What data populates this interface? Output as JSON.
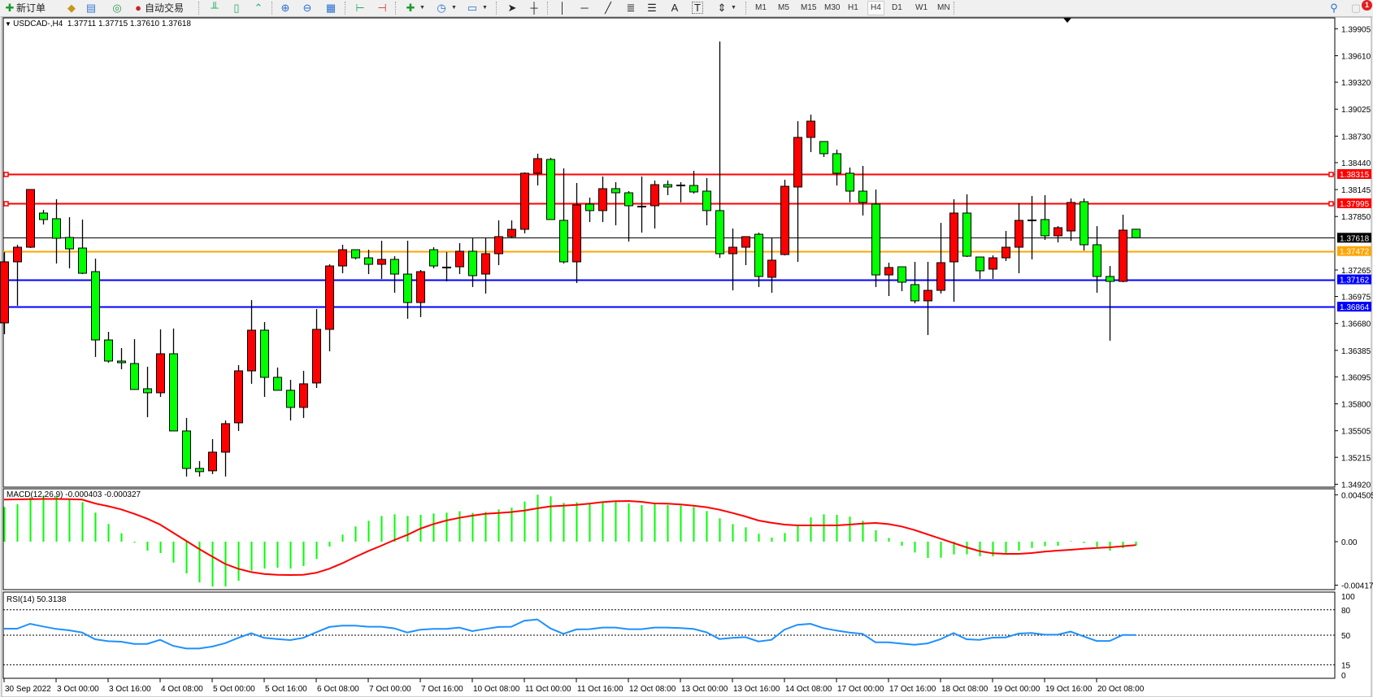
{
  "toolbar": {
    "new_order_label": "新订单",
    "auto_trading_label": "自动交易",
    "timeframes": [
      "M1",
      "M5",
      "M15",
      "M30",
      "H1",
      "H4",
      "D1",
      "W1",
      "MN"
    ],
    "active_timeframe": "H4",
    "notification_count": "1",
    "icons": [
      "new-order-icon",
      "gold-icon",
      "market-watch-icon",
      "signals-icon",
      "auto-trading-icon",
      "bar-chart-icon",
      "candlestick-icon",
      "line-chart-icon",
      "zoom-in-icon",
      "zoom-out-icon",
      "tile-windows-icon",
      "chart-shift-icon",
      "autoscroll-icon",
      "add-indicator-icon",
      "periods-icon",
      "templates-icon",
      "cursor-icon",
      "crosshair-icon",
      "vertical-line-icon",
      "horizontal-line-icon",
      "trendline-icon",
      "fibonacci-icon",
      "fibo-fan-icon",
      "text-icon",
      "text-label-icon",
      "arrows-icon",
      "search-icon",
      "notifications-icon"
    ]
  },
  "chart": {
    "symbol_header": "USDCAD-,H4  1.37711 1.37715 1.37610 1.37618",
    "colors": {
      "bull": "#ff0000",
      "bear": "#00ff00",
      "background": "#ffffff",
      "signal": "#ff0000",
      "histogram": "#00ff00",
      "rsi": "#1e90ff"
    },
    "price_axis_labels": [
      "1.39905",
      "1.39610",
      "1.39320",
      "1.39025",
      "1.38730",
      "1.38440",
      "1.38145",
      "1.37850",
      "1.37265",
      "1.36975",
      "1.36680",
      "1.36385",
      "1.36095",
      "1.35800",
      "1.35505",
      "1.35215",
      "1.34920"
    ],
    "levels": [
      {
        "price": "1.38315",
        "color": "#ff0000",
        "text_color": "#ffffff"
      },
      {
        "price": "1.37995",
        "color": "#ff0000",
        "text_color": "#ffffff"
      },
      {
        "price": "1.37618",
        "color": "#000000",
        "text_color": "#ffffff"
      },
      {
        "price": "1.37472",
        "color": "#ffa500",
        "text_color": "#ffffff"
      },
      {
        "price": "1.37162",
        "color": "#0000ff",
        "text_color": "#ffffff"
      },
      {
        "price": "1.36864",
        "color": "#0000ff",
        "text_color": "#ffffff"
      }
    ],
    "time_labels": [
      "30 Sep 2022",
      "3 Oct 00:00",
      "3 Oct 16:00",
      "4 Oct 08:00",
      "5 Oct 00:00",
      "5 Oct 16:00",
      "6 Oct 08:00",
      "7 Oct 00:00",
      "7 Oct 16:00",
      "10 Oct 08:00",
      "11 Oct 00:00",
      "11 Oct 16:00",
      "12 Oct 08:00",
      "13 Oct 00:00",
      "13 Oct 16:00",
      "14 Oct 08:00",
      "17 Oct 00:00",
      "17 Oct 16:00",
      "18 Oct 08:00",
      "19 Oct 00:00",
      "19 Oct 16:00",
      "20 Oct 08:00"
    ]
  },
  "macd": {
    "label": "MACD(12,26,9) -0.000403 -0.000327",
    "axis_labels": [
      "0.004505",
      "0.00",
      "-0.004177"
    ]
  },
  "rsi": {
    "label": "RSI(14) 50.3138",
    "axis_labels": [
      "100",
      "80",
      "50",
      "15",
      "0"
    ],
    "levels": [
      80,
      50,
      15
    ]
  },
  "chart_data": {
    "type": "candlestick",
    "symbol": "USDCAD-",
    "timeframe": "H4",
    "ylim": [
      1.3492,
      1.39905
    ],
    "ohlc": [
      [
        1.36686,
        1.37461,
        1.36562,
        1.37354
      ],
      [
        1.37354,
        1.37541,
        1.36873,
        1.37514
      ],
      [
        1.37514,
        1.38146,
        1.37505,
        1.38146
      ],
      [
        1.37888,
        1.37923,
        1.37763,
        1.37817
      ],
      [
        1.37826,
        1.38039,
        1.37336,
        1.37612
      ],
      [
        1.37621,
        1.37843,
        1.37283,
        1.37496
      ],
      [
        1.37505,
        1.37817,
        1.3722,
        1.37229
      ],
      [
        1.37247,
        1.37389,
        1.36313,
        1.36499
      ],
      [
        1.36499,
        1.36588,
        1.3625,
        1.36268
      ],
      [
        1.36268,
        1.3641,
        1.36179,
        1.3625
      ],
      [
        1.36241,
        1.36508,
        1.35957,
        1.35957
      ],
      [
        1.35965,
        1.36206,
        1.35654,
        1.35921
      ],
      [
        1.35921,
        1.36615,
        1.35876,
        1.36348
      ],
      [
        1.36348,
        1.36624,
        1.35503,
        1.35503
      ],
      [
        1.35503,
        1.35645,
        1.35004,
        1.35093
      ],
      [
        1.35093,
        1.35173,
        1.35004,
        1.35058
      ],
      [
        1.35067,
        1.35414,
        1.35031,
        1.35271
      ],
      [
        1.35271,
        1.35618,
        1.35004,
        1.35583
      ],
      [
        1.35592,
        1.36224,
        1.35503,
        1.36161
      ],
      [
        1.36161,
        1.36936,
        1.36019,
        1.36606
      ],
      [
        1.36606,
        1.36695,
        1.35876,
        1.3609
      ],
      [
        1.3609,
        1.36197,
        1.35948,
        1.35948
      ],
      [
        1.35948,
        1.36063,
        1.35618,
        1.35761
      ],
      [
        1.35761,
        1.36161,
        1.35645,
        1.36019
      ],
      [
        1.36028,
        1.36838,
        1.35974,
        1.36615
      ],
      [
        1.36615,
        1.37327,
        1.36375,
        1.37309
      ],
      [
        1.37309,
        1.37541,
        1.37229,
        1.37487
      ],
      [
        1.37487,
        1.37487,
        1.37381,
        1.37398
      ],
      [
        1.37398,
        1.37487,
        1.3722,
        1.37327
      ],
      [
        1.37327,
        1.37585,
        1.37167,
        1.37381
      ],
      [
        1.37381,
        1.37416,
        1.37016,
        1.3722
      ],
      [
        1.3722,
        1.37585,
        1.36731,
        1.36909
      ],
      [
        1.36909,
        1.37265,
        1.36749,
        1.37247
      ],
      [
        1.37487,
        1.37514,
        1.37283,
        1.37309
      ],
      [
        1.37292,
        1.37461,
        1.3714,
        1.37292
      ],
      [
        1.373,
        1.37559,
        1.3722,
        1.3747
      ],
      [
        1.3747,
        1.37612,
        1.37078,
        1.37203
      ],
      [
        1.3722,
        1.37612,
        1.37007,
        1.37443
      ],
      [
        1.37443,
        1.37808,
        1.37318,
        1.3763
      ],
      [
        1.3763,
        1.37808,
        1.37612,
        1.3771
      ],
      [
        1.3771,
        1.38333,
        1.37665,
        1.38324
      ],
      [
        1.38324,
        1.38538,
        1.3819,
        1.38484
      ],
      [
        1.38475,
        1.38493,
        1.37817,
        1.37817
      ],
      [
        1.37808,
        1.38377,
        1.37336,
        1.37354
      ],
      [
        1.37354,
        1.38217,
        1.37122,
        1.37977
      ],
      [
        1.37986,
        1.38057,
        1.3779,
        1.37915
      ],
      [
        1.37915,
        1.38288,
        1.3779,
        1.38155
      ],
      [
        1.38155,
        1.38226,
        1.37754,
        1.3811
      ],
      [
        1.3811,
        1.38128,
        1.37576,
        1.37968
      ],
      [
        1.37959,
        1.38288,
        1.37674,
        1.37959
      ],
      [
        1.37968,
        1.38244,
        1.37719,
        1.38199
      ],
      [
        1.38199,
        1.38244,
        1.38084,
        1.38173
      ],
      [
        1.3819,
        1.38226,
        1.38004,
        1.3819
      ],
      [
        1.3819,
        1.38351,
        1.38101,
        1.38119
      ],
      [
        1.38128,
        1.38271,
        1.37754,
        1.37915
      ],
      [
        1.37915,
        1.39766,
        1.37398,
        1.37443
      ],
      [
        1.37443,
        1.37719,
        1.37042,
        1.37514
      ],
      [
        1.37514,
        1.3763,
        1.37318,
        1.3763
      ],
      [
        1.37656,
        1.37674,
        1.37078,
        1.37194
      ],
      [
        1.37185,
        1.37612,
        1.37016,
        1.37372
      ],
      [
        1.37434,
        1.38253,
        1.37425,
        1.38181
      ],
      [
        1.38173,
        1.38894,
        1.37354,
        1.38716
      ],
      [
        1.38716,
        1.38965,
        1.38555,
        1.38894
      ],
      [
        1.38671,
        1.38671,
        1.38502,
        1.38538
      ],
      [
        1.38538,
        1.38582,
        1.3819,
        1.38324
      ],
      [
        1.38324,
        1.38386,
        1.38004,
        1.38128
      ],
      [
        1.38128,
        1.38404,
        1.37861,
        1.38004
      ],
      [
        1.37986,
        1.38146,
        1.37078,
        1.37211
      ],
      [
        1.37211,
        1.37345,
        1.3698,
        1.37292
      ],
      [
        1.373,
        1.373,
        1.37033,
        1.37131
      ],
      [
        1.37105,
        1.37354,
        1.369,
        1.36927
      ],
      [
        1.36927,
        1.37354,
        1.36553,
        1.37042
      ],
      [
        1.37042,
        1.37781,
        1.37007,
        1.37345
      ],
      [
        1.37354,
        1.38039,
        1.36918,
        1.37888
      ],
      [
        1.37888,
        1.38093,
        1.37407,
        1.37416
      ],
      [
        1.37407,
        1.37407,
        1.37167,
        1.37256
      ],
      [
        1.37274,
        1.37425,
        1.37167,
        1.37398
      ],
      [
        1.37398,
        1.37692,
        1.37363,
        1.37514
      ],
      [
        1.37514,
        1.37995,
        1.37229,
        1.37808
      ],
      [
        1.37808,
        1.38075,
        1.37381,
        1.37808
      ],
      [
        1.37817,
        1.38084,
        1.37594,
        1.37639
      ],
      [
        1.37639,
        1.37745,
        1.37567,
        1.37728
      ],
      [
        1.37692,
        1.38048,
        1.37585,
        1.38004
      ],
      [
        1.38012,
        1.38048,
        1.37478,
        1.37541
      ],
      [
        1.37541,
        1.37745,
        1.37016,
        1.37194
      ],
      [
        1.37194,
        1.37309,
        1.36491,
        1.3714
      ],
      [
        1.3714,
        1.3787,
        1.37131,
        1.37701
      ],
      [
        1.37711,
        1.37715,
        1.3761,
        1.37618
      ]
    ],
    "macd_histogram": [
      0.00333,
      0.00359,
      0.00424,
      0.00443,
      0.00443,
      0.00411,
      0.0038,
      0.00279,
      0.00169,
      0.00081,
      -0.0001,
      -0.00086,
      -0.00109,
      -0.00201,
      -0.00305,
      -0.00391,
      -0.0043,
      -0.0043,
      -0.00375,
      -0.00279,
      -0.00258,
      -0.0025,
      -0.00258,
      -0.00234,
      -0.00167,
      -0.00047,
      0.00068,
      0.00146,
      0.00201,
      0.00247,
      0.00263,
      0.00247,
      0.00258,
      0.00271,
      0.00279,
      0.00292,
      0.00276,
      0.00286,
      0.0031,
      0.00326,
      0.00385,
      0.00451,
      0.00435,
      0.00372,
      0.00378,
      0.00359,
      0.00378,
      0.00393,
      0.00367,
      0.00352,
      0.00359,
      0.00352,
      0.00346,
      0.00333,
      0.00294,
      0.00224,
      0.00169,
      0.00138,
      0.00076,
      0.00039,
      0.00083,
      0.00156,
      0.00234,
      0.00263,
      0.00258,
      0.0024,
      0.00201,
      0.00109,
      0.00036,
      -0.00039,
      -0.00104,
      -0.00156,
      -0.00154,
      -0.00122,
      -0.00122,
      -0.00141,
      -0.00141,
      -0.00115,
      -0.00086,
      -0.0006,
      -0.00044,
      -0.00039,
      5e-05,
      -0.00013,
      -0.0005,
      -0.00086,
      -0.00063,
      -0.0004
    ],
    "macd_signal": [
      0.00404,
      0.00406,
      0.00408,
      0.0041,
      0.0041,
      0.00408,
      0.00404,
      0.00367,
      0.00341,
      0.0031,
      0.00268,
      0.00221,
      0.00164,
      0.00086,
      8e-05,
      -0.0007,
      -0.00143,
      -0.00214,
      -0.0026,
      -0.00292,
      -0.0031,
      -0.00318,
      -0.0032,
      -0.00318,
      -0.00299,
      -0.0026,
      -0.00208,
      -0.00148,
      -0.00091,
      -0.00039,
      0.00016,
      0.00065,
      0.00125,
      0.00169,
      0.00203,
      0.00229,
      0.0025,
      0.00268,
      0.00276,
      0.00284,
      0.00299,
      0.0032,
      0.00339,
      0.00346,
      0.00354,
      0.00365,
      0.0038,
      0.00388,
      0.00391,
      0.00383,
      0.00367,
      0.00365,
      0.00357,
      0.00346,
      0.00331,
      0.00307,
      0.00276,
      0.00242,
      0.00203,
      0.00182,
      0.00164,
      0.00156,
      0.00156,
      0.00156,
      0.00156,
      0.00164,
      0.00174,
      0.0018,
      0.00169,
      0.00146,
      0.00112,
      0.0007,
      0.00029,
      -0.00013,
      -0.00055,
      -0.00091,
      -0.00112,
      -0.00117,
      -0.00117,
      -0.00109,
      -0.00096,
      -0.00086,
      -0.00078,
      -0.00068,
      -0.0006,
      -0.00055,
      -0.00044,
      -0.00033
    ],
    "rsi": [
      57.7,
      57.7,
      63.5,
      60.3,
      57.4,
      55.8,
      53.2,
      45.2,
      42.9,
      42.3,
      39.7,
      39.7,
      44.5,
      37.4,
      34.2,
      34.2,
      36.5,
      40.6,
      46.8,
      52.3,
      46.8,
      45.5,
      44.2,
      46.8,
      53.5,
      59.7,
      61.3,
      61.3,
      60.0,
      60.0,
      58.1,
      53.2,
      56.5,
      57.4,
      57.4,
      59.0,
      54.8,
      57.4,
      59.7,
      60.0,
      67.1,
      68.7,
      58.1,
      51.6,
      56.8,
      57.1,
      59.0,
      59.0,
      57.1,
      57.1,
      59.0,
      59.0,
      58.4,
      57.4,
      53.5,
      45.5,
      46.8,
      47.7,
      42.6,
      44.5,
      56.5,
      62.3,
      63.5,
      58.4,
      55.5,
      53.2,
      51.6,
      41.6,
      41.6,
      40.0,
      38.7,
      40.3,
      45.2,
      52.6,
      45.2,
      44.5,
      47.1,
      47.4,
      51.9,
      52.6,
      50.6,
      50.6,
      54.2,
      48.7,
      43.2,
      43.2,
      50.3,
      50.3
    ],
    "macd_ylim": [
      -0.004177,
      0.004505
    ],
    "rsi_ylim": [
      0,
      100
    ]
  }
}
